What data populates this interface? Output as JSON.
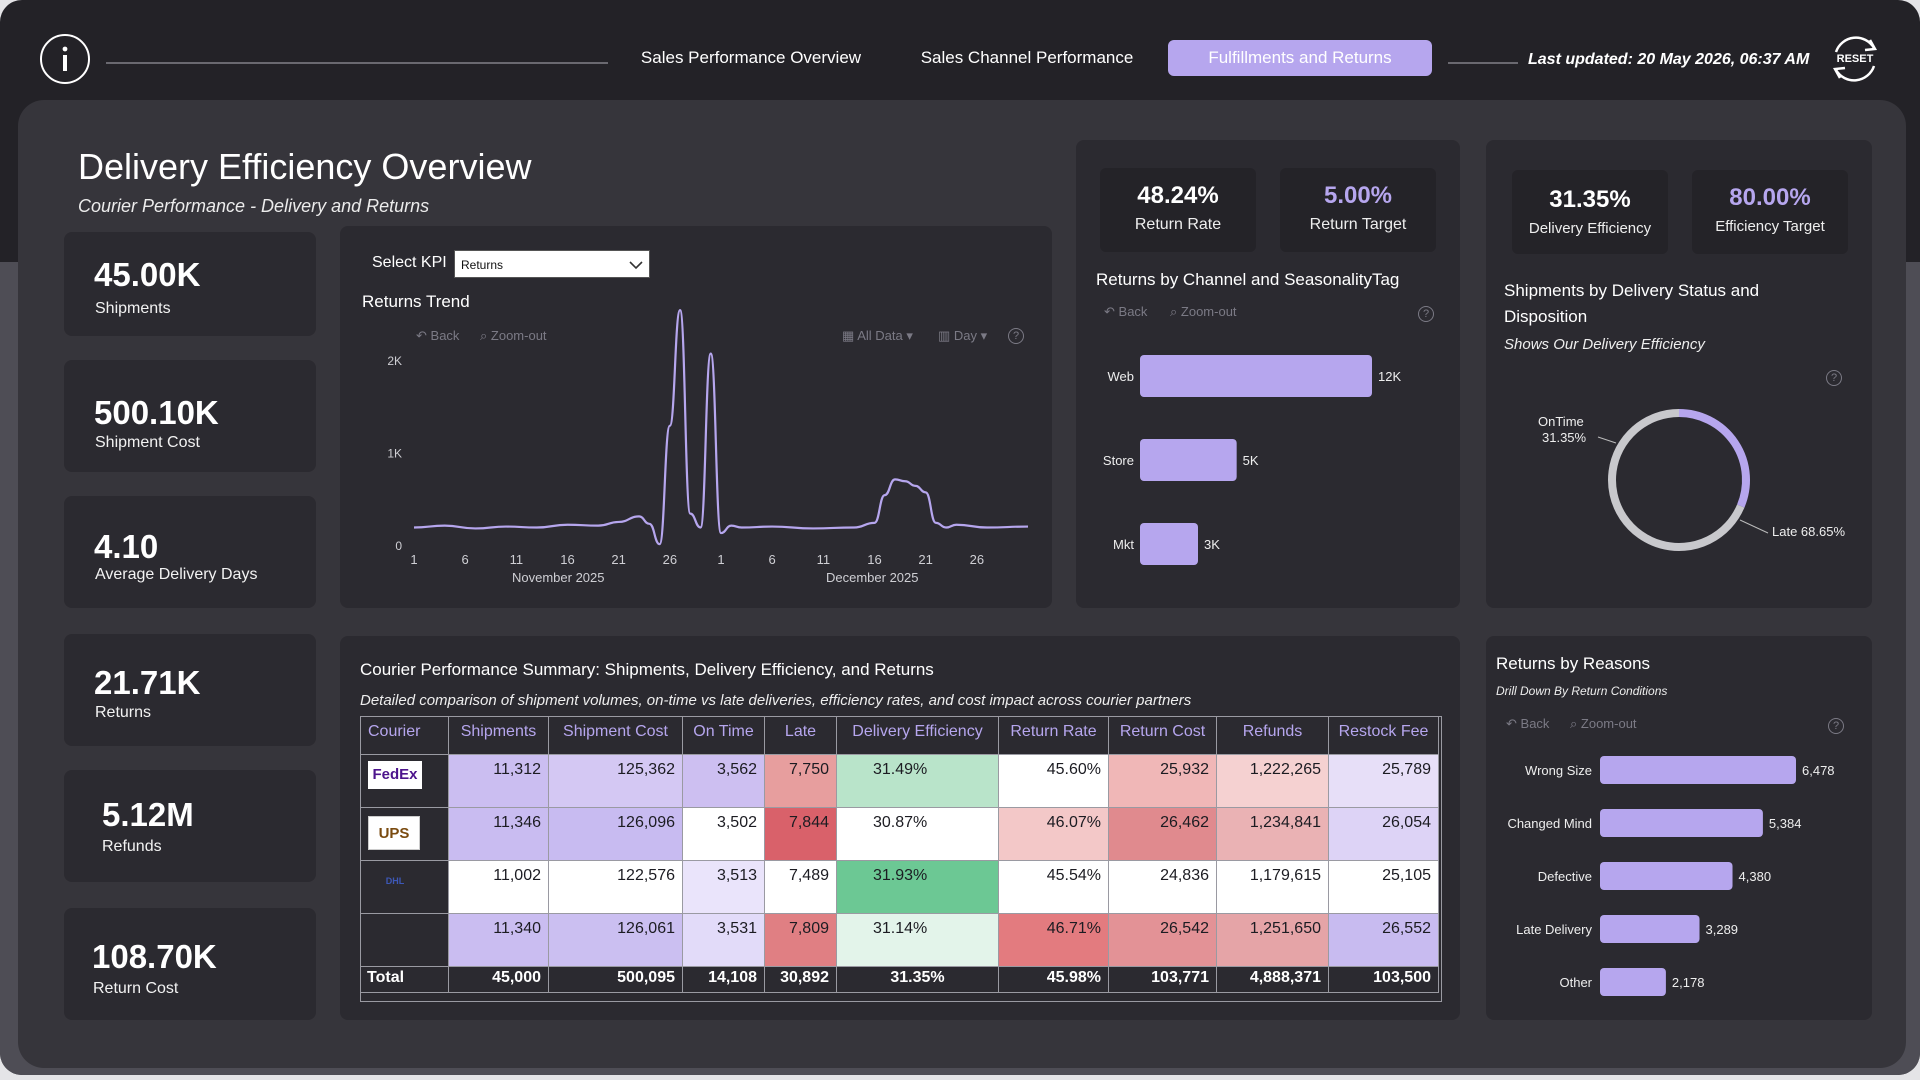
{
  "nav": {
    "tabs": [
      "Sales Performance Overview",
      "Sales Channel Performance",
      "Fulfillments and Returns"
    ],
    "active_index": 2,
    "last_updated": "Last updated: 20 May 2026, 06:37 AM",
    "reset_label": "RESET",
    "accent": "#b6a6ee"
  },
  "header": {
    "title": "Delivery Efficiency Overview",
    "subtitle": "Courier Performance - Delivery and Returns"
  },
  "kpis": [
    {
      "value": "45.00K",
      "label": "Shipments"
    },
    {
      "value": "500.10K",
      "label": "Shipment Cost"
    },
    {
      "value": "4.10",
      "label": "Average Delivery Days"
    },
    {
      "value": "21.71K",
      "label": "Returns"
    },
    {
      "value": "5.12M",
      "label": "Refunds"
    },
    {
      "value": "108.70K",
      "label": "Return Cost"
    }
  ],
  "trend": {
    "select_label": "Select KPI",
    "select_value": "Returns",
    "title": "Returns Trend",
    "controls": {
      "back": "Back",
      "zoom": "Zoom-out",
      "all_data": "All Data",
      "day": "Day",
      "help": "?"
    },
    "month_labels": [
      "November 2025",
      "December 2025"
    ]
  },
  "returns_kpi": {
    "rate_value": "48.24%",
    "rate_label": "Return Rate",
    "target_value": "5.00%",
    "target_label": "Return Target"
  },
  "delivery_kpi": {
    "eff_value": "31.35%",
    "eff_label": "Delivery Efficiency",
    "target_value": "80.00%",
    "target_label": "Efficiency Target"
  },
  "channel": {
    "title": "Returns by Channel and SeasonalityTag",
    "back": "Back",
    "zoom": "Zoom-out",
    "help": "?"
  },
  "donut": {
    "title": "Shipments by Delivery Status and Disposition",
    "subtitle": "Shows Our Delivery Efficiency",
    "help": "?",
    "ontime_label": "OnTime",
    "ontime_pct": "31.35%",
    "late_label": "Late 68.65%"
  },
  "courier_table": {
    "title": "Courier Performance Summary: Shipments, Delivery Efficiency, and Returns",
    "subtitle": "Detailed comparison of shipment volumes, on-time vs late deliveries, efficiency rates, and cost impact across courier partners",
    "columns": [
      "Courier",
      "Shipments",
      "Shipment Cost",
      "On Time",
      "Late",
      "Delivery Efficiency",
      "Return Rate",
      "Return Cost",
      "Refunds",
      "Restock Fee"
    ],
    "logos": [
      "FedEx",
      "UPS",
      "DHL",
      ""
    ],
    "rows": [
      [
        "11,312",
        "125,362",
        "3,562",
        "7,750",
        "31.49%",
        "45.60%",
        "25,932",
        "1,222,265",
        "25,789"
      ],
      [
        "11,346",
        "126,096",
        "3,502",
        "7,844",
        "30.87%",
        "46.07%",
        "26,462",
        "1,234,841",
        "26,054"
      ],
      [
        "11,002",
        "122,576",
        "3,513",
        "7,489",
        "31.93%",
        "45.54%",
        "24,836",
        "1,179,615",
        "25,105"
      ],
      [
        "11,340",
        "126,061",
        "3,531",
        "7,809",
        "31.14%",
        "46.71%",
        "26,542",
        "1,251,650",
        "26,552"
      ]
    ],
    "total_label": "Total",
    "totals": [
      "45,000",
      "500,095",
      "14,108",
      "30,892",
      "31.35%",
      "45.98%",
      "103,771",
      "4,888,371",
      "103,500"
    ]
  },
  "reasons": {
    "title": "Returns by Reasons",
    "subtitle": "Drill Down By Return Conditions",
    "back": "Back",
    "zoom": "Zoom-out",
    "help": "?"
  },
  "chart_data": [
    {
      "type": "line",
      "title": "Returns Trend",
      "x_start": "2025-11-01",
      "x_end": "2025-12-31",
      "x_ticks": [
        "1",
        "6",
        "11",
        "16",
        "21",
        "26",
        "1",
        "6",
        "11",
        "16",
        "21",
        "26"
      ],
      "y_ticks": [
        "0",
        "1K",
        "2K"
      ],
      "ylim": [
        0,
        2400
      ],
      "x": [
        "2025-11-01",
        "2025-11-04",
        "2025-11-07",
        "2025-11-10",
        "2025-11-13",
        "2025-11-16",
        "2025-11-19",
        "2025-11-21",
        "2025-11-23",
        "2025-11-24",
        "2025-11-25",
        "2025-11-26",
        "2025-11-27",
        "2025-11-28",
        "2025-11-29",
        "2025-11-30",
        "2025-12-01",
        "2025-12-02",
        "2025-12-03",
        "2025-12-06",
        "2025-12-10",
        "2025-12-14",
        "2025-12-16",
        "2025-12-17",
        "2025-12-18",
        "2025-12-19",
        "2025-12-20",
        "2025-12-21",
        "2025-12-22",
        "2025-12-23",
        "2025-12-24",
        "2025-12-27",
        "2025-12-31"
      ],
      "values": [
        200,
        220,
        190,
        210,
        200,
        230,
        220,
        260,
        320,
        240,
        20,
        1300,
        2550,
        350,
        200,
        2080,
        140,
        220,
        200,
        210,
        190,
        200,
        250,
        550,
        720,
        700,
        650,
        580,
        250,
        200,
        230,
        200,
        210
      ]
    },
    {
      "type": "bar",
      "orientation": "horizontal",
      "title": "Returns by Channel and SeasonalityTag",
      "categories": [
        "Web",
        "Store",
        "Mkt"
      ],
      "values": [
        12000,
        5000,
        3000
      ],
      "data_labels": [
        "12K",
        "5K",
        "3K"
      ]
    },
    {
      "type": "pie",
      "title": "Shipments by Delivery Status and Disposition",
      "categories": [
        "OnTime",
        "Late"
      ],
      "values": [
        31.35,
        68.65
      ]
    },
    {
      "type": "bar",
      "orientation": "horizontal",
      "title": "Returns by Reasons",
      "categories": [
        "Wrong Size",
        "Changed Mind",
        "Defective",
        "Late Delivery",
        "Other"
      ],
      "values": [
        6478,
        5384,
        4380,
        3289,
        2178
      ],
      "data_labels": [
        "6,478",
        "5,384",
        "4,380",
        "3,289",
        "2,178"
      ]
    }
  ]
}
